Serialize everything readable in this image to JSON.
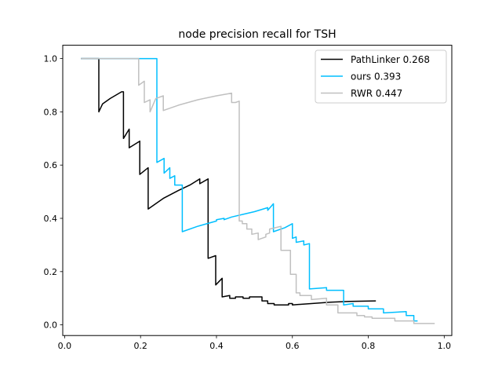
{
  "chart_data": {
    "type": "line",
    "title": "node precision recall for TSH",
    "xlabel": "",
    "ylabel": "",
    "xlim": [
      -0.005,
      1.02
    ],
    "ylim": [
      -0.04,
      1.05
    ],
    "xticks": [
      "0.0",
      "0.2",
      "0.4",
      "0.6",
      "0.8",
      "1.0"
    ],
    "yticks": [
      "0.0",
      "0.2",
      "0.4",
      "0.6",
      "0.8",
      "1.0"
    ],
    "grid": false,
    "legend_position": "top-right",
    "series": [
      {
        "name": "PathLinker 0.268",
        "color": "#000000",
        "points": [
          [
            0.043,
            1.0
          ],
          [
            0.09,
            1.0
          ],
          [
            0.09,
            0.8
          ],
          [
            0.1,
            0.83
          ],
          [
            0.12,
            0.85
          ],
          [
            0.15,
            0.875
          ],
          [
            0.155,
            0.875
          ],
          [
            0.155,
            0.7
          ],
          [
            0.17,
            0.735
          ],
          [
            0.17,
            0.665
          ],
          [
            0.198,
            0.69
          ],
          [
            0.198,
            0.565
          ],
          [
            0.22,
            0.59
          ],
          [
            0.22,
            0.435
          ],
          [
            0.26,
            0.475
          ],
          [
            0.3,
            0.505
          ],
          [
            0.33,
            0.525
          ],
          [
            0.356,
            0.548
          ],
          [
            0.356,
            0.53
          ],
          [
            0.378,
            0.548
          ],
          [
            0.378,
            0.25
          ],
          [
            0.398,
            0.26
          ],
          [
            0.398,
            0.15
          ],
          [
            0.415,
            0.175
          ],
          [
            0.415,
            0.105
          ],
          [
            0.435,
            0.11
          ],
          [
            0.435,
            0.1
          ],
          [
            0.45,
            0.1
          ],
          [
            0.45,
            0.105
          ],
          [
            0.47,
            0.105
          ],
          [
            0.47,
            0.1
          ],
          [
            0.487,
            0.1
          ],
          [
            0.487,
            0.105
          ],
          [
            0.52,
            0.105
          ],
          [
            0.52,
            0.09
          ],
          [
            0.535,
            0.09
          ],
          [
            0.535,
            0.08
          ],
          [
            0.552,
            0.08
          ],
          [
            0.552,
            0.075
          ],
          [
            0.59,
            0.075
          ],
          [
            0.59,
            0.08
          ],
          [
            0.6,
            0.08
          ],
          [
            0.6,
            0.075
          ],
          [
            0.65,
            0.08
          ],
          [
            0.7,
            0.085
          ],
          [
            0.75,
            0.088
          ],
          [
            0.82,
            0.09
          ]
        ]
      },
      {
        "name": "ours 0.393",
        "color": "#00bfff",
        "points": [
          [
            0.043,
            1.0
          ],
          [
            0.243,
            1.0
          ],
          [
            0.243,
            0.61
          ],
          [
            0.262,
            0.625
          ],
          [
            0.262,
            0.57
          ],
          [
            0.277,
            0.59
          ],
          [
            0.277,
            0.55
          ],
          [
            0.29,
            0.56
          ],
          [
            0.29,
            0.525
          ],
          [
            0.31,
            0.525
          ],
          [
            0.31,
            0.35
          ],
          [
            0.35,
            0.37
          ],
          [
            0.4,
            0.39
          ],
          [
            0.4,
            0.395
          ],
          [
            0.42,
            0.4
          ],
          [
            0.42,
            0.395
          ],
          [
            0.44,
            0.405
          ],
          [
            0.47,
            0.415
          ],
          [
            0.5,
            0.425
          ],
          [
            0.535,
            0.44
          ],
          [
            0.535,
            0.43
          ],
          [
            0.55,
            0.455
          ],
          [
            0.55,
            0.35
          ],
          [
            0.58,
            0.365
          ],
          [
            0.6,
            0.38
          ],
          [
            0.6,
            0.325
          ],
          [
            0.61,
            0.33
          ],
          [
            0.61,
            0.31
          ],
          [
            0.63,
            0.315
          ],
          [
            0.63,
            0.3
          ],
          [
            0.645,
            0.305
          ],
          [
            0.645,
            0.135
          ],
          [
            0.69,
            0.14
          ],
          [
            0.69,
            0.13
          ],
          [
            0.735,
            0.13
          ],
          [
            0.735,
            0.075
          ],
          [
            0.76,
            0.08
          ],
          [
            0.76,
            0.07
          ],
          [
            0.8,
            0.07
          ],
          [
            0.8,
            0.06
          ],
          [
            0.84,
            0.06
          ],
          [
            0.84,
            0.045
          ],
          [
            0.9,
            0.05
          ],
          [
            0.9,
            0.035
          ],
          [
            0.92,
            0.035
          ],
          [
            0.92,
            0.015
          ],
          [
            0.93,
            0.015
          ]
        ]
      },
      {
        "name": "RWR 0.447",
        "color": "#c0c0c0",
        "points": [
          [
            0.043,
            1.0
          ],
          [
            0.195,
            1.0
          ],
          [
            0.195,
            0.9
          ],
          [
            0.21,
            0.915
          ],
          [
            0.21,
            0.835
          ],
          [
            0.225,
            0.845
          ],
          [
            0.225,
            0.8
          ],
          [
            0.24,
            0.85
          ],
          [
            0.26,
            0.86
          ],
          [
            0.26,
            0.805
          ],
          [
            0.3,
            0.825
          ],
          [
            0.35,
            0.845
          ],
          [
            0.4,
            0.86
          ],
          [
            0.44,
            0.87
          ],
          [
            0.44,
            0.835
          ],
          [
            0.45,
            0.835
          ],
          [
            0.46,
            0.84
          ],
          [
            0.46,
            0.39
          ],
          [
            0.468,
            0.39
          ],
          [
            0.468,
            0.38
          ],
          [
            0.48,
            0.38
          ],
          [
            0.48,
            0.36
          ],
          [
            0.493,
            0.36
          ],
          [
            0.493,
            0.34
          ],
          [
            0.51,
            0.345
          ],
          [
            0.51,
            0.32
          ],
          [
            0.53,
            0.33
          ],
          [
            0.53,
            0.34
          ],
          [
            0.54,
            0.345
          ],
          [
            0.54,
            0.36
          ],
          [
            0.57,
            0.37
          ],
          [
            0.57,
            0.28
          ],
          [
            0.595,
            0.28
          ],
          [
            0.595,
            0.19
          ],
          [
            0.61,
            0.19
          ],
          [
            0.61,
            0.12
          ],
          [
            0.62,
            0.12
          ],
          [
            0.62,
            0.11
          ],
          [
            0.65,
            0.11
          ],
          [
            0.65,
            0.095
          ],
          [
            0.69,
            0.1
          ],
          [
            0.69,
            0.075
          ],
          [
            0.72,
            0.075
          ],
          [
            0.72,
            0.045
          ],
          [
            0.77,
            0.045
          ],
          [
            0.77,
            0.035
          ],
          [
            0.79,
            0.035
          ],
          [
            0.79,
            0.03
          ],
          [
            0.81,
            0.03
          ],
          [
            0.81,
            0.025
          ],
          [
            0.87,
            0.025
          ],
          [
            0.87,
            0.015
          ],
          [
            0.92,
            0.015
          ],
          [
            0.92,
            0.005
          ],
          [
            0.975,
            0.005
          ]
        ]
      }
    ]
  }
}
